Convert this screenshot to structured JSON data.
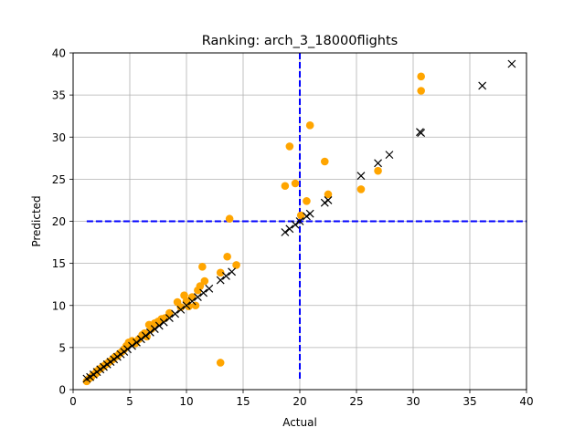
{
  "chart_data": {
    "type": "scatter",
    "title": "Ranking: arch_3_18000flights",
    "xlabel": "Actual",
    "ylabel": "Predicted",
    "xlim": [
      0,
      40
    ],
    "ylim": [
      0,
      40
    ],
    "xticks": [
      0,
      5,
      10,
      15,
      20,
      25,
      30,
      35,
      40
    ],
    "yticks": [
      0,
      5,
      10,
      15,
      20,
      25,
      30,
      35,
      40
    ],
    "grid": true,
    "threshold": {
      "x": 20,
      "y": 20,
      "color": "#0000ff"
    },
    "series": [
      {
        "marker": "circle",
        "color": "#ffa500",
        "points": [
          [
            1.2,
            1.0
          ],
          [
            1.4,
            1.3
          ],
          [
            1.6,
            1.5
          ],
          [
            1.8,
            1.8
          ],
          [
            2.0,
            1.9
          ],
          [
            2.1,
            2.2
          ],
          [
            2.3,
            2.4
          ],
          [
            2.5,
            2.6
          ],
          [
            2.7,
            2.8
          ],
          [
            2.9,
            3.0
          ],
          [
            3.1,
            3.2
          ],
          [
            3.3,
            3.4
          ],
          [
            3.5,
            3.6
          ],
          [
            3.7,
            3.9
          ],
          [
            3.9,
            4.0
          ],
          [
            4.1,
            4.3
          ],
          [
            4.3,
            4.5
          ],
          [
            4.5,
            4.8
          ],
          [
            4.7,
            5.2
          ],
          [
            4.9,
            5.6
          ],
          [
            5.2,
            5.8
          ],
          [
            5.5,
            5.5
          ],
          [
            5.8,
            6.0
          ],
          [
            6.1,
            6.5
          ],
          [
            6.3,
            6.7
          ],
          [
            6.5,
            6.3
          ],
          [
            6.7,
            7.7
          ],
          [
            6.9,
            7.2
          ],
          [
            7.2,
            7.9
          ],
          [
            7.5,
            8.1
          ],
          [
            7.8,
            8.4
          ],
          [
            8.1,
            8.5
          ],
          [
            8.5,
            9.1
          ],
          [
            9.2,
            10.4
          ],
          [
            9.5,
            9.8
          ],
          [
            9.8,
            11.2
          ],
          [
            10.0,
            10.5
          ],
          [
            10.2,
            9.9
          ],
          [
            10.5,
            11.0
          ],
          [
            10.8,
            10.0
          ],
          [
            11.0,
            11.8
          ],
          [
            11.2,
            12.3
          ],
          [
            11.4,
            14.6
          ],
          [
            11.6,
            12.9
          ],
          [
            13.0,
            13.9
          ],
          [
            13.0,
            3.2
          ],
          [
            13.6,
            15.8
          ],
          [
            13.8,
            20.3
          ],
          [
            14.4,
            14.8
          ],
          [
            18.7,
            24.2
          ],
          [
            19.1,
            28.9
          ],
          [
            19.6,
            24.5
          ],
          [
            20.1,
            20.7
          ],
          [
            20.6,
            22.4
          ],
          [
            20.9,
            31.4
          ],
          [
            22.2,
            27.1
          ],
          [
            22.5,
            23.2
          ],
          [
            25.4,
            23.8
          ],
          [
            26.9,
            26.0
          ],
          [
            30.7,
            37.2
          ],
          [
            30.7,
            35.5
          ]
        ]
      },
      {
        "marker": "x",
        "color": "#000000",
        "points": [
          [
            1.2,
            1.3
          ],
          [
            1.5,
            1.5
          ],
          [
            1.8,
            1.8
          ],
          [
            2.1,
            2.1
          ],
          [
            2.4,
            2.4
          ],
          [
            2.7,
            2.7
          ],
          [
            3.0,
            3.0
          ],
          [
            3.3,
            3.3
          ],
          [
            3.6,
            3.6
          ],
          [
            3.9,
            3.9
          ],
          [
            4.2,
            4.2
          ],
          [
            4.5,
            4.5
          ],
          [
            4.8,
            4.8
          ],
          [
            5.2,
            5.2
          ],
          [
            5.6,
            5.6
          ],
          [
            6.0,
            6.0
          ],
          [
            6.4,
            6.4
          ],
          [
            6.8,
            6.8
          ],
          [
            7.2,
            7.2
          ],
          [
            7.6,
            7.6
          ],
          [
            8.0,
            8.0
          ],
          [
            8.5,
            8.5
          ],
          [
            9.0,
            9.0
          ],
          [
            9.5,
            9.5
          ],
          [
            10.0,
            10.0
          ],
          [
            10.5,
            10.5
          ],
          [
            11.0,
            11.0
          ],
          [
            11.5,
            11.5
          ],
          [
            12.0,
            12.0
          ],
          [
            13.0,
            13.0
          ],
          [
            13.5,
            13.5
          ],
          [
            14.0,
            14.0
          ],
          [
            18.7,
            18.7
          ],
          [
            19.1,
            19.1
          ],
          [
            19.6,
            19.6
          ],
          [
            20.0,
            20.0
          ],
          [
            20.6,
            20.6
          ],
          [
            20.9,
            20.9
          ],
          [
            22.2,
            22.2
          ],
          [
            22.5,
            22.5
          ],
          [
            25.4,
            25.4
          ],
          [
            26.9,
            26.9
          ],
          [
            27.9,
            27.9
          ],
          [
            30.6,
            30.6
          ],
          [
            30.7,
            30.5
          ],
          [
            36.1,
            36.1
          ],
          [
            38.7,
            38.7
          ]
        ]
      }
    ]
  }
}
